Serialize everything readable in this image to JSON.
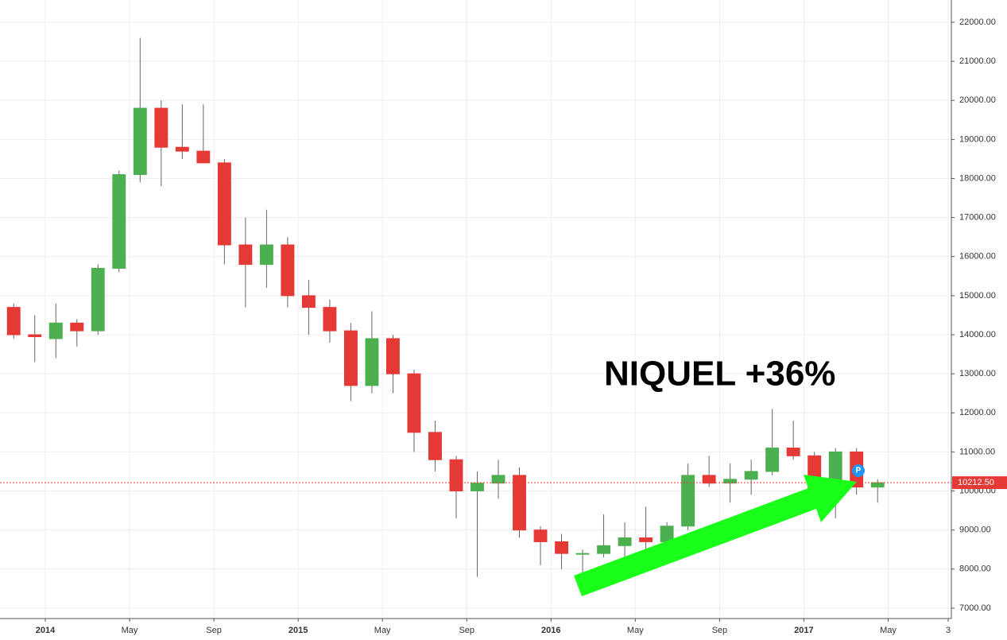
{
  "chart_data": {
    "type": "candlestick",
    "annotation": "NIQUEL  +36%",
    "x": [
      -2,
      -1,
      0,
      1,
      2,
      3,
      4,
      5,
      6,
      7,
      8,
      9,
      10,
      11,
      12,
      13,
      14,
      15,
      16,
      17,
      18,
      19,
      20,
      21,
      22,
      23,
      24,
      25,
      26,
      27,
      28,
      29,
      30,
      31,
      32,
      33,
      34,
      35,
      36,
      37,
      38,
      39
    ],
    "open": [
      14700,
      14000,
      13900,
      14300,
      14100,
      15700,
      18100,
      19800,
      18800,
      18700,
      18400,
      16300,
      15800,
      16300,
      15000,
      14700,
      14100,
      12700,
      13900,
      13000,
      11500,
      10800,
      10000,
      10200,
      10400,
      9000,
      8700,
      8400,
      8400,
      8600,
      8800,
      8700,
      9100,
      10400,
      10200,
      10300,
      10500,
      11100,
      10900,
      10000,
      11000,
      10100
    ],
    "high": [
      14800,
      14500,
      14800,
      14400,
      15800,
      18200,
      21600,
      20000,
      19900,
      19900,
      18500,
      17000,
      17200,
      16500,
      15400,
      14900,
      14300,
      14600,
      14000,
      13100,
      11800,
      10900,
      10500,
      10800,
      10600,
      9100,
      8900,
      8500,
      9400,
      9200,
      9600,
      9200,
      10700,
      10900,
      10700,
      10800,
      12100,
      11800,
      11000,
      11100,
      11100,
      10300
    ],
    "low": [
      13900,
      13300,
      13400,
      13700,
      14000,
      15600,
      17900,
      17800,
      18500,
      18400,
      15800,
      14700,
      15200,
      14700,
      14000,
      13800,
      12300,
      12500,
      12500,
      11000,
      10500,
      9300,
      7800,
      9800,
      8800,
      8100,
      8000,
      7800,
      8300,
      8300,
      8500,
      8400,
      9000,
      10100,
      9700,
      9900,
      10400,
      10800,
      9900,
      9300,
      9900,
      9700
    ],
    "close": [
      14000,
      13950,
      14300,
      14100,
      15700,
      18100,
      19800,
      18800,
      18700,
      18400,
      16300,
      15800,
      16300,
      15000,
      14700,
      14100,
      12700,
      13900,
      13000,
      11500,
      10800,
      10000,
      10200,
      10400,
      9000,
      8700,
      8400,
      8400,
      8600,
      8800,
      8700,
      9100,
      10400,
      10200,
      10300,
      10500,
      11100,
      10900,
      10000,
      11000,
      10100,
      10212.5
    ],
    "up_color": "#4caf50",
    "down_color": "#e53935",
    "wick_color": "#666666",
    "xlim": [
      -2.15,
      43.0
    ],
    "xticks": [
      {
        "value": 0,
        "label": "2014"
      },
      {
        "value": 4,
        "label": "May"
      },
      {
        "value": 8,
        "label": "Sep"
      },
      {
        "value": 12,
        "label": "2015"
      },
      {
        "value": 16,
        "label": "May"
      },
      {
        "value": 20,
        "label": "Sep"
      },
      {
        "value": 24,
        "label": "2016"
      },
      {
        "value": 28,
        "label": "May"
      },
      {
        "value": 32,
        "label": "Sep"
      },
      {
        "value": 36,
        "label": "2017"
      },
      {
        "value": 40,
        "label": "May"
      },
      {
        "value": 42.85,
        "label": "3"
      }
    ],
    "ylim": [
      6734,
      22570
    ],
    "yticks": [
      {
        "value": 7000,
        "label": "7000.00"
      },
      {
        "value": 8000,
        "label": "8000.00"
      },
      {
        "value": 9000,
        "label": "9000.00"
      },
      {
        "value": 10000,
        "label": "10000.00"
      },
      {
        "value": 11000,
        "label": "11000.00"
      },
      {
        "value": 12000,
        "label": "12000.00"
      },
      {
        "value": 13000,
        "label": "13000.00"
      },
      {
        "value": 14000,
        "label": "14000.00"
      },
      {
        "value": 15000,
        "label": "15000.00"
      },
      {
        "value": 16000,
        "label": "16000.00"
      },
      {
        "value": 17000,
        "label": "17000.00"
      },
      {
        "value": 18000,
        "label": "18000.00"
      },
      {
        "value": 19000,
        "label": "19000.00"
      },
      {
        "value": 20000,
        "label": "20000.00"
      },
      {
        "value": 21000,
        "label": "21000.00"
      },
      {
        "value": 22000,
        "label": "22000.00"
      }
    ],
    "last_price": {
      "value": 10212.5,
      "label": "10212.50"
    },
    "last_price_color": "#e53935",
    "grid": true
  }
}
